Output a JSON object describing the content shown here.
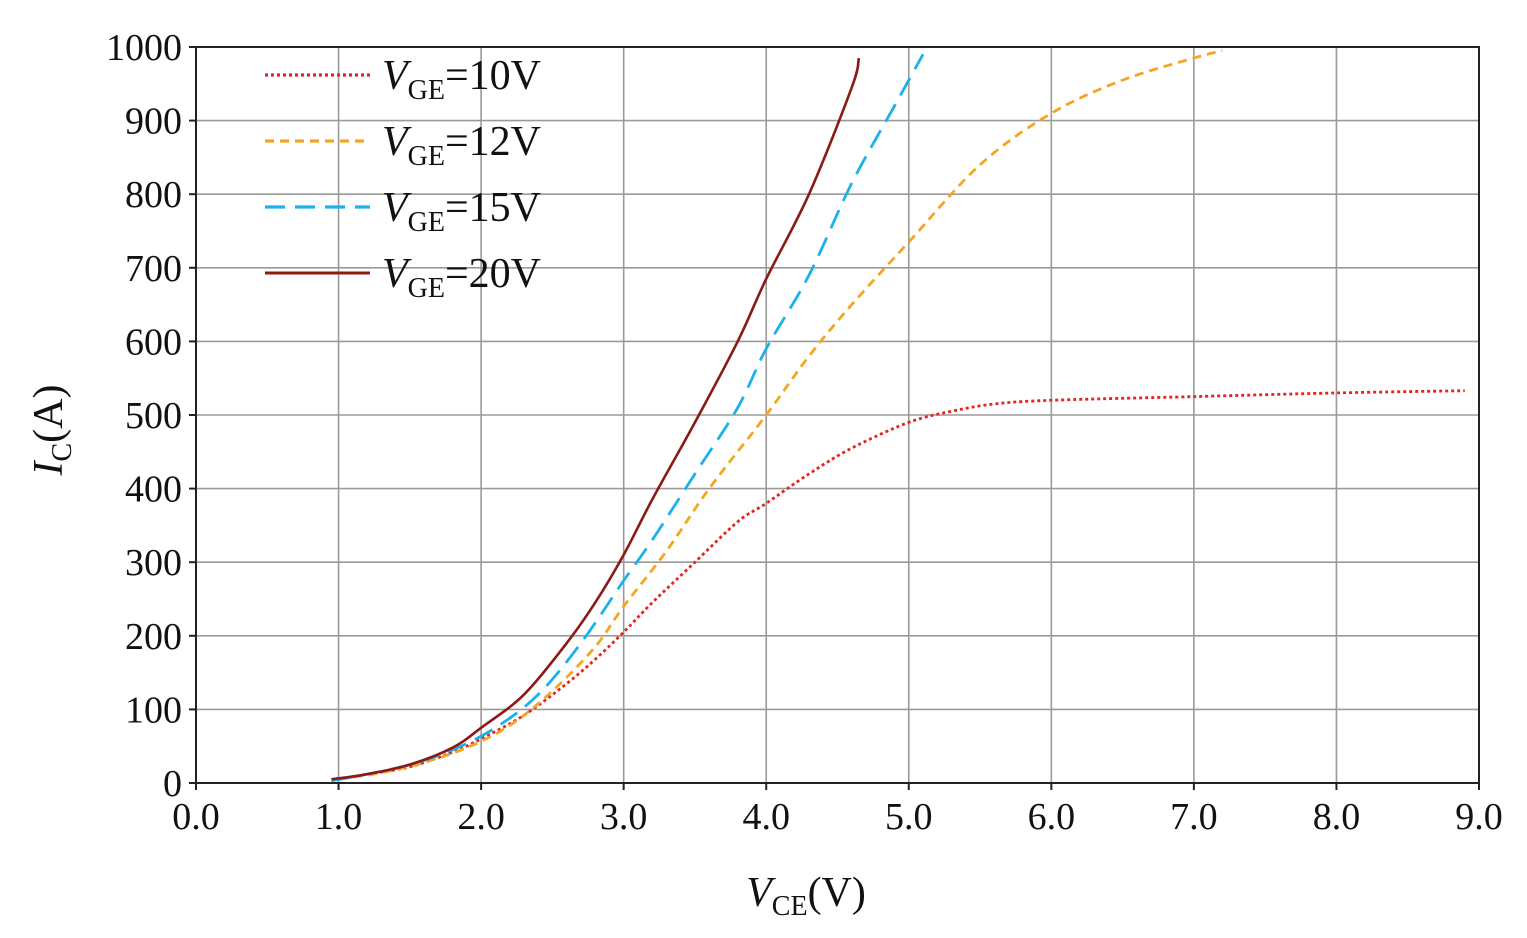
{
  "chart_data": {
    "type": "line",
    "title": "",
    "xlabel": {
      "main": "V",
      "sub": "CE",
      "unit": "(V)"
    },
    "ylabel": {
      "main": "I",
      "sub": "C",
      "unit": "(A)"
    },
    "xlim": [
      0,
      9
    ],
    "ylim": [
      0,
      1000
    ],
    "x_ticks": [
      0,
      1,
      2,
      3,
      4,
      5,
      6,
      7,
      8,
      9
    ],
    "x_tick_labels": [
      "0.0",
      "1.0",
      "2.0",
      "3.0",
      "4.0",
      "5.0",
      "6.0",
      "7.0",
      "8.0",
      "9.0"
    ],
    "y_ticks": [
      0,
      100,
      200,
      300,
      400,
      500,
      600,
      700,
      800,
      900,
      1000
    ],
    "y_tick_labels": [
      "0",
      "100",
      "200",
      "300",
      "400",
      "500",
      "600",
      "700",
      "800",
      "900",
      "1000"
    ],
    "grid": true,
    "legend_position": "top-left",
    "series": [
      {
        "name": "V_GE=10V",
        "label_main": "V",
        "label_sub": "GE",
        "label_rest": "=10V",
        "color": "#e8231f",
        "style": "dotted",
        "points": [
          [
            1.0,
            5
          ],
          [
            1.2,
            12
          ],
          [
            1.5,
            22
          ],
          [
            1.8,
            42
          ],
          [
            2.0,
            60
          ],
          [
            2.3,
            92
          ],
          [
            2.6,
            135
          ],
          [
            2.8,
            168
          ],
          [
            3.0,
            205
          ],
          [
            3.2,
            245
          ],
          [
            3.5,
            300
          ],
          [
            3.8,
            355
          ],
          [
            4.0,
            380
          ],
          [
            4.3,
            420
          ],
          [
            4.6,
            455
          ],
          [
            5.0,
            490
          ],
          [
            5.3,
            505
          ],
          [
            5.6,
            515
          ],
          [
            6.0,
            520
          ],
          [
            7.0,
            525
          ],
          [
            8.0,
            530
          ],
          [
            8.9,
            533
          ]
        ]
      },
      {
        "name": "V_GE=12V",
        "label_main": "V",
        "label_sub": "GE",
        "label_rest": "=12V",
        "color": "#f4a622",
        "style": "dashed",
        "points": [
          [
            1.0,
            5
          ],
          [
            1.3,
            14
          ],
          [
            1.6,
            28
          ],
          [
            1.9,
            48
          ],
          [
            2.2,
            78
          ],
          [
            2.5,
            125
          ],
          [
            2.8,
            185
          ],
          [
            3.0,
            240
          ],
          [
            3.3,
            315
          ],
          [
            3.6,
            400
          ],
          [
            4.0,
            500
          ],
          [
            4.3,
            580
          ],
          [
            4.6,
            650
          ],
          [
            5.0,
            735
          ],
          [
            5.5,
            840
          ],
          [
            6.0,
            910
          ],
          [
            6.5,
            955
          ],
          [
            7.0,
            985
          ],
          [
            7.2,
            995
          ]
        ]
      },
      {
        "name": "V_GE=15V",
        "label_main": "V",
        "label_sub": "GE",
        "label_rest": "=15V",
        "color": "#1ab2ec",
        "style": "long-dashed",
        "points": [
          [
            0.95,
            3
          ],
          [
            1.2,
            12
          ],
          [
            1.5,
            25
          ],
          [
            1.8,
            45
          ],
          [
            2.1,
            75
          ],
          [
            2.4,
            120
          ],
          [
            2.7,
            190
          ],
          [
            3.0,
            275
          ],
          [
            3.2,
            330
          ],
          [
            3.5,
            420
          ],
          [
            3.8,
            510
          ],
          [
            4.0,
            590
          ],
          [
            4.3,
            690
          ],
          [
            4.6,
            815
          ],
          [
            4.9,
            920
          ],
          [
            5.1,
            990
          ]
        ]
      },
      {
        "name": "V_GE=20V",
        "label_main": "V",
        "label_sub": "GE",
        "label_rest": "=20V",
        "color": "#8b1a14",
        "style": "solid",
        "points": [
          [
            0.95,
            5
          ],
          [
            1.2,
            12
          ],
          [
            1.5,
            25
          ],
          [
            1.8,
            48
          ],
          [
            2.0,
            75
          ],
          [
            2.3,
            120
          ],
          [
            2.6,
            190
          ],
          [
            2.8,
            245
          ],
          [
            3.0,
            310
          ],
          [
            3.2,
            385
          ],
          [
            3.5,
            490
          ],
          [
            3.8,
            600
          ],
          [
            4.0,
            685
          ],
          [
            4.3,
            800
          ],
          [
            4.6,
            945
          ],
          [
            4.65,
            985
          ]
        ]
      }
    ]
  }
}
